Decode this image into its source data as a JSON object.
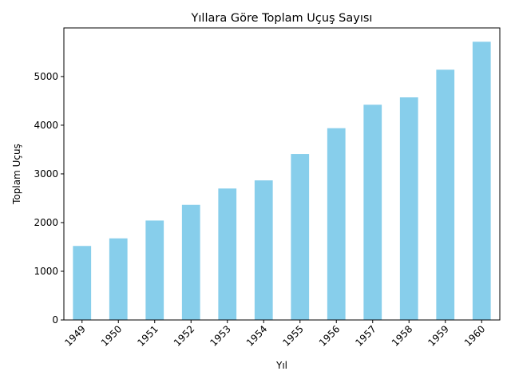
{
  "chart_data": {
    "type": "bar",
    "title": "Yıllara Göre Toplam Uçuş Sayısı",
    "xlabel": "Yıl",
    "ylabel": "Toplam Uçuş",
    "categories": [
      "1949",
      "1950",
      "1951",
      "1952",
      "1953",
      "1954",
      "1955",
      "1956",
      "1957",
      "1958",
      "1959",
      "1960"
    ],
    "values": [
      1520,
      1676,
      2042,
      2364,
      2700,
      2867,
      3408,
      3939,
      4421,
      4572,
      5140,
      5714
    ],
    "ylim": [
      0,
      5998
    ],
    "yticks": [
      0,
      1000,
      2000,
      3000,
      4000,
      5000
    ],
    "grid": false,
    "legend": false,
    "bar_color": "#87ceeb"
  }
}
